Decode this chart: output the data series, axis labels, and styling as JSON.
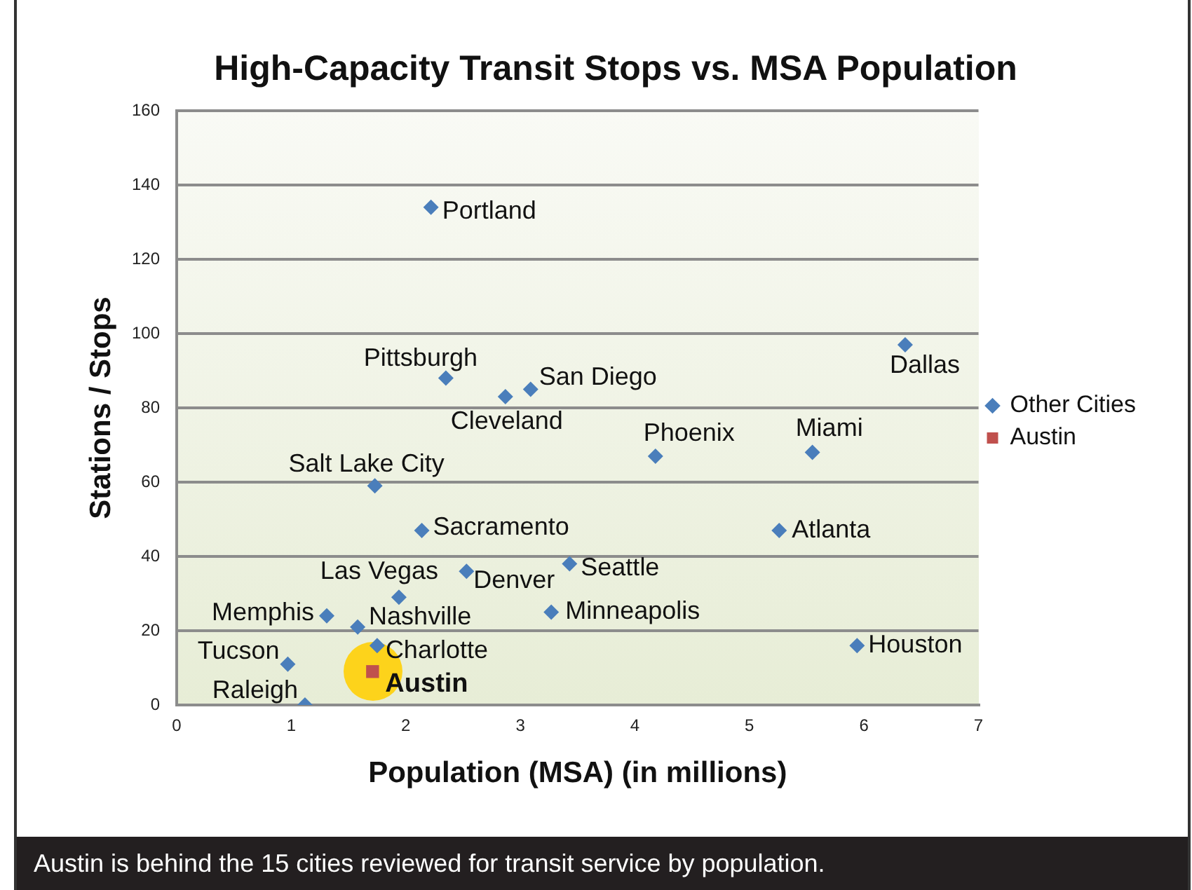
{
  "chart_data": {
    "type": "scatter",
    "title": "High-Capacity Transit Stops vs. MSA Population",
    "xlabel": "Population (MSA) (in millions)",
    "ylabel": "Stations / Stops",
    "series": [
      {
        "name": "Other Cities",
        "color": "#4a7ebb",
        "marker": "diamond",
        "x": [
          2.22,
          2.35,
          2.87,
          3.09,
          6.36,
          4.18,
          5.55,
          1.73,
          2.14,
          5.26,
          1.94,
          2.53,
          3.43,
          1.31,
          1.58,
          3.27,
          1.75,
          5.94,
          0.97,
          1.12
        ],
        "values": [
          134,
          88,
          83,
          85,
          97,
          67,
          68,
          59,
          47,
          47,
          29,
          36,
          38,
          24,
          21,
          25,
          16,
          16,
          11,
          0
        ]
      },
      {
        "name": "Austin",
        "color": "#c0504d",
        "marker": "square",
        "x": [
          1.71
        ],
        "values": [
          9
        ]
      }
    ],
    "xlim": [
      0,
      7
    ],
    "xticks": [
      0,
      1,
      2,
      3,
      4,
      5,
      6,
      7
    ],
    "ylim": [
      0,
      160
    ],
    "yticks": [
      0,
      20,
      40,
      60,
      80,
      100,
      120,
      140,
      160
    ],
    "grid": "y",
    "legend": "right",
    "annotations": [
      "Austin is behind the 15 cities reviewed for transit service by population.",
      {
        "text": "Portland",
        "x": 2.22,
        "y": 134
      },
      {
        "text": "Pittsburgh",
        "x": 2.35,
        "y": 88
      },
      {
        "text": "Cleveland",
        "x": 2.87,
        "y": 83
      },
      {
        "text": "San Diego",
        "x": 3.09,
        "y": 85
      },
      {
        "text": "Dallas",
        "x": 6.36,
        "y": 97
      },
      {
        "text": "Phoenix",
        "x": 4.18,
        "y": 67
      },
      {
        "text": "Miami",
        "x": 5.55,
        "y": 68
      },
      {
        "text": "Salt Lake City",
        "x": 1.73,
        "y": 59
      },
      {
        "text": "Sacramento",
        "x": 2.14,
        "y": 47
      },
      {
        "text": "Atlanta",
        "x": 5.26,
        "y": 47
      },
      {
        "text": "Las Vegas",
        "x": 1.94,
        "y": 29
      },
      {
        "text": "Denver",
        "x": 2.53,
        "y": 36
      },
      {
        "text": "Seattle",
        "x": 3.43,
        "y": 38
      },
      {
        "text": "Memphis",
        "x": 1.31,
        "y": 24
      },
      {
        "text": "Nashville",
        "x": 1.58,
        "y": 21
      },
      {
        "text": "Minneapolis",
        "x": 3.27,
        "y": 25
      },
      {
        "text": "Charlotte",
        "x": 1.75,
        "y": 16
      },
      {
        "text": "Houston",
        "x": 5.94,
        "y": 16
      },
      {
        "text": "Tucson",
        "x": 0.97,
        "y": 11
      },
      {
        "text": "Raleigh",
        "x": 1.12,
        "y": 0
      },
      {
        "text": "Austin",
        "x": 1.71,
        "y": 9
      }
    ]
  }
}
